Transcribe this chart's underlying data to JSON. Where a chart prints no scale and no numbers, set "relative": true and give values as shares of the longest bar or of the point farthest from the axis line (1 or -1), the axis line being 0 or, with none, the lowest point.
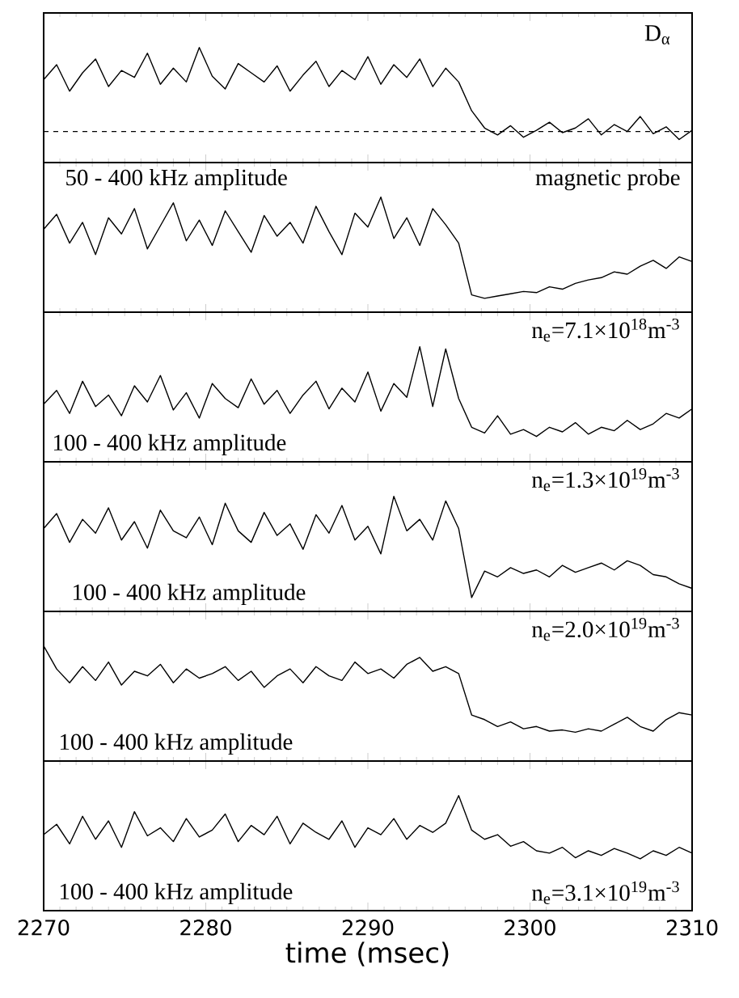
{
  "chart_data": [
    {
      "type": "line",
      "relative": true,
      "color": "#000000",
      "xlim": [
        2270,
        2310
      ],
      "xticks": [
        2270,
        2280,
        2290,
        2300,
        2310
      ],
      "tick_labels": false,
      "annotations": [
        "D$_{α}$"
      ],
      "ref_lines": [
        {
          "axis": "y",
          "value": 0.27,
          "line_style": "dashed"
        }
      ],
      "x": [
        2270,
        2270.8,
        2271.6,
        2272.4,
        2273.2,
        2274,
        2274.8,
        2275.6,
        2276.4,
        2277.2,
        2278,
        2278.8,
        2279.6,
        2280.4,
        2281.2,
        2282,
        2282.8,
        2283.6,
        2284.4,
        2285.2,
        2286,
        2286.8,
        2287.6,
        2288.4,
        2289.2,
        2290,
        2290.8,
        2291.6,
        2292.4,
        2293.2,
        2294,
        2294.8,
        2295.6,
        2296.4,
        2297.2,
        2298,
        2298.8,
        2299.6,
        2300.4,
        2301.2,
        2302,
        2302.8,
        2303.6,
        2304.4,
        2305.2,
        2306,
        2306.8,
        2307.6,
        2308.4,
        2309.2,
        2310
      ],
      "values": [
        0.72,
        0.85,
        0.62,
        0.78,
        0.9,
        0.66,
        0.8,
        0.74,
        0.95,
        0.68,
        0.82,
        0.7,
        1,
        0.75,
        0.64,
        0.86,
        0.78,
        0.7,
        0.84,
        0.62,
        0.76,
        0.88,
        0.66,
        0.8,
        0.72,
        0.92,
        0.68,
        0.85,
        0.74,
        0.9,
        0.66,
        0.82,
        0.7,
        0.45,
        0.3,
        0.24,
        0.32,
        0.22,
        0.28,
        0.35,
        0.26,
        0.3,
        0.38,
        0.24,
        0.33,
        0.27,
        0.4,
        0.25,
        0.31,
        0.2,
        0.28
      ]
    },
    {
      "type": "line",
      "relative": true,
      "color": "#000000",
      "xlim": [
        2270,
        2310
      ],
      "xticks": [
        2270,
        2280,
        2290,
        2300,
        2310
      ],
      "tick_labels": false,
      "annotations": [
        "50 - 400 kHz  amplitude",
        "magnetic probe"
      ],
      "x": [
        2270,
        2270.8,
        2271.6,
        2272.4,
        2273.2,
        2274,
        2274.8,
        2275.6,
        2276.4,
        2277.2,
        2278,
        2278.8,
        2279.6,
        2280.4,
        2281.2,
        2282,
        2282.8,
        2283.6,
        2284.4,
        2285.2,
        2286,
        2286.8,
        2287.6,
        2288.4,
        2289.2,
        2290,
        2290.8,
        2291.6,
        2292.4,
        2293.2,
        2294,
        2294.8,
        2295.6,
        2296.4,
        2297.2,
        2298,
        2298.8,
        2299.6,
        2300.4,
        2301.2,
        2302,
        2302.8,
        2303.6,
        2304.4,
        2305.2,
        2306,
        2306.8,
        2307.6,
        2308.4,
        2309.2,
        2310
      ],
      "values": [
        0.72,
        0.85,
        0.6,
        0.78,
        0.5,
        0.82,
        0.68,
        0.9,
        0.55,
        0.75,
        0.95,
        0.62,
        0.8,
        0.58,
        0.88,
        0.7,
        0.52,
        0.84,
        0.66,
        0.78,
        0.6,
        0.92,
        0.7,
        0.5,
        0.86,
        0.74,
        1,
        0.64,
        0.82,
        0.58,
        0.9,
        0.76,
        0.6,
        0.15,
        0.12,
        0.14,
        0.16,
        0.18,
        0.17,
        0.22,
        0.2,
        0.25,
        0.28,
        0.3,
        0.35,
        0.33,
        0.4,
        0.45,
        0.38,
        0.48,
        0.44
      ]
    },
    {
      "type": "line",
      "relative": true,
      "color": "#000000",
      "xlim": [
        2270,
        2310
      ],
      "xticks": [
        2270,
        2280,
        2290,
        2300,
        2310
      ],
      "tick_labels": false,
      "annotations": [
        "n$_{e}$=7.1×10$^{18}$m$^{-3}$",
        "100 - 400 kHz amplitude"
      ],
      "x": [
        2270,
        2270.8,
        2271.6,
        2272.4,
        2273.2,
        2274,
        2274.8,
        2275.6,
        2276.4,
        2277.2,
        2278,
        2278.8,
        2279.6,
        2280.4,
        2281.2,
        2282,
        2282.8,
        2283.6,
        2284.4,
        2285.2,
        2286,
        2286.8,
        2287.6,
        2288.4,
        2289.2,
        2290,
        2290.8,
        2291.6,
        2292.4,
        2293.2,
        2294,
        2294.8,
        2295.6,
        2296.4,
        2297.2,
        2298,
        2298.8,
        2299.6,
        2300.4,
        2301.2,
        2302,
        2302.8,
        2303.6,
        2304.4,
        2305.2,
        2306,
        2306.8,
        2307.6,
        2308.4,
        2309.2,
        2310
      ],
      "values": [
        0.5,
        0.62,
        0.42,
        0.7,
        0.48,
        0.58,
        0.4,
        0.66,
        0.52,
        0.75,
        0.45,
        0.6,
        0.38,
        0.68,
        0.55,
        0.47,
        0.72,
        0.5,
        0.62,
        0.42,
        0.58,
        0.7,
        0.46,
        0.64,
        0.52,
        0.78,
        0.44,
        0.68,
        0.56,
        1,
        0.48,
        0.98,
        0.55,
        0.3,
        0.25,
        0.4,
        0.24,
        0.28,
        0.22,
        0.3,
        0.26,
        0.34,
        0.24,
        0.3,
        0.27,
        0.36,
        0.28,
        0.33,
        0.42,
        0.38,
        0.46
      ]
    },
    {
      "type": "line",
      "relative": true,
      "color": "#000000",
      "xlim": [
        2270,
        2310
      ],
      "xticks": [
        2270,
        2280,
        2290,
        2300,
        2310
      ],
      "tick_labels": false,
      "annotations": [
        "n$_{e}$=1.3×10$^{19}$m$^{-3}$",
        "100 - 400 kHz  amplitude"
      ],
      "x": [
        2270,
        2270.8,
        2271.6,
        2272.4,
        2273.2,
        2274,
        2274.8,
        2275.6,
        2276.4,
        2277.2,
        2278,
        2278.8,
        2279.6,
        2280.4,
        2281.2,
        2282,
        2282.8,
        2283.6,
        2284.4,
        2285.2,
        2286,
        2286.8,
        2287.6,
        2288.4,
        2289.2,
        2290,
        2290.8,
        2291.6,
        2292.4,
        2293.2,
        2294,
        2294.8,
        2295.6,
        2296.4,
        2297.2,
        2298,
        2298.8,
        2299.6,
        2300.4,
        2301.2,
        2302,
        2302.8,
        2303.6,
        2304.4,
        2305.2,
        2306,
        2306.8,
        2307.6,
        2308.4,
        2309.2,
        2310
      ],
      "values": [
        0.72,
        0.85,
        0.6,
        0.8,
        0.68,
        0.9,
        0.62,
        0.78,
        0.55,
        0.88,
        0.7,
        0.64,
        0.82,
        0.58,
        0.94,
        0.7,
        0.6,
        0.86,
        0.66,
        0.76,
        0.54,
        0.84,
        0.68,
        0.92,
        0.62,
        0.74,
        0.5,
        1,
        0.7,
        0.8,
        0.62,
        0.96,
        0.72,
        0.12,
        0.35,
        0.3,
        0.38,
        0.33,
        0.36,
        0.3,
        0.4,
        0.34,
        0.38,
        0.42,
        0.36,
        0.44,
        0.4,
        0.32,
        0.3,
        0.24,
        0.2
      ]
    },
    {
      "type": "line",
      "relative": true,
      "color": "#000000",
      "xlim": [
        2270,
        2310
      ],
      "xticks": [
        2270,
        2280,
        2290,
        2300,
        2310
      ],
      "tick_labels": false,
      "annotations": [
        "n$_{e}$=2.0×10$^{19}$m$^{-3}$",
        "100 - 400 kHz  amplitude"
      ],
      "x": [
        2270,
        2270.8,
        2271.6,
        2272.4,
        2273.2,
        2274,
        2274.8,
        2275.6,
        2276.4,
        2277.2,
        2278,
        2278.8,
        2279.6,
        2280.4,
        2281.2,
        2282,
        2282.8,
        2283.6,
        2284.4,
        2285.2,
        2286,
        2286.8,
        2287.6,
        2288.4,
        2289.2,
        2290,
        2290.8,
        2291.6,
        2292.4,
        2293.2,
        2294,
        2294.8,
        2295.6,
        2296.4,
        2297.2,
        2298,
        2298.8,
        2299.6,
        2300.4,
        2301.2,
        2302,
        2302.8,
        2303.6,
        2304.4,
        2305.2,
        2306,
        2306.8,
        2307.6,
        2308.4,
        2309.2,
        2310
      ],
      "values": [
        1,
        0.8,
        0.68,
        0.82,
        0.7,
        0.86,
        0.66,
        0.78,
        0.74,
        0.84,
        0.68,
        0.8,
        0.72,
        0.76,
        0.82,
        0.7,
        0.78,
        0.64,
        0.74,
        0.8,
        0.68,
        0.82,
        0.74,
        0.7,
        0.86,
        0.76,
        0.8,
        0.72,
        0.84,
        0.9,
        0.78,
        0.82,
        0.76,
        0.4,
        0.36,
        0.3,
        0.34,
        0.28,
        0.3,
        0.26,
        0.27,
        0.25,
        0.28,
        0.26,
        0.32,
        0.38,
        0.3,
        0.26,
        0.36,
        0.42,
        0.4
      ]
    },
    {
      "type": "line",
      "relative": true,
      "color": "#000000",
      "xlim": [
        2270,
        2310
      ],
      "xticks": [
        2270,
        2280,
        2290,
        2300,
        2310
      ],
      "xlabel": "time (msec)",
      "annotations": [
        "100 - 400 kHz  amplitude",
        "n$_{e}$=3.1×10$^{19}$m$^{-3}$"
      ],
      "x": [
        2270,
        2270.8,
        2271.6,
        2272.4,
        2273.2,
        2274,
        2274.8,
        2275.6,
        2276.4,
        2277.2,
        2278,
        2278.8,
        2279.6,
        2280.4,
        2281.2,
        2282,
        2282.8,
        2283.6,
        2284.4,
        2285.2,
        2286,
        2286.8,
        2287.6,
        2288.4,
        2289.2,
        2290,
        2290.8,
        2291.6,
        2292.4,
        2293.2,
        2294,
        2294.8,
        2295.6,
        2296.4,
        2297.2,
        2298,
        2298.8,
        2299.6,
        2300.4,
        2301.2,
        2302,
        2302.8,
        2303.6,
        2304.4,
        2305.2,
        2306,
        2306.8,
        2307.6,
        2308.4,
        2309.2,
        2310
      ],
      "values": [
        0.66,
        0.75,
        0.58,
        0.82,
        0.62,
        0.78,
        0.55,
        0.86,
        0.65,
        0.72,
        0.6,
        0.8,
        0.64,
        0.7,
        0.84,
        0.6,
        0.74,
        0.66,
        0.82,
        0.58,
        0.76,
        0.68,
        0.62,
        0.78,
        0.55,
        0.72,
        0.66,
        0.8,
        0.62,
        0.74,
        0.68,
        0.76,
        1,
        0.7,
        0.62,
        0.66,
        0.56,
        0.6,
        0.52,
        0.5,
        0.55,
        0.46,
        0.52,
        0.48,
        0.54,
        0.5,
        0.45,
        0.52,
        0.48,
        0.55,
        0.5
      ]
    }
  ]
}
